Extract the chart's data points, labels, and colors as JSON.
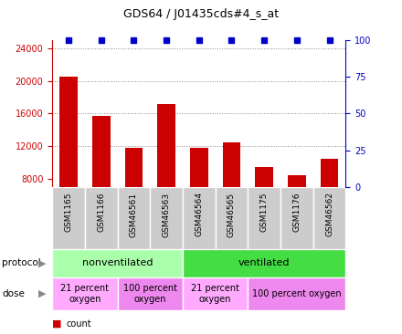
{
  "title": "GDS64 / J01435cds#4_s_at",
  "samples": [
    "GSM1165",
    "GSM1166",
    "GSM46561",
    "GSM46563",
    "GSM46564",
    "GSM46565",
    "GSM1175",
    "GSM1176",
    "GSM46562"
  ],
  "counts": [
    20500,
    15700,
    11800,
    17200,
    11800,
    12500,
    9500,
    8500,
    10500
  ],
  "ylim_left": [
    7000,
    25000
  ],
  "ylim_right": [
    0,
    100
  ],
  "yticks_left": [
    8000,
    12000,
    16000,
    20000,
    24000
  ],
  "yticks_right": [
    0,
    25,
    50,
    75,
    100
  ],
  "bar_color": "#cc0000",
  "dot_color": "#0000cc",
  "grid_dotted_ticks": [
    12000,
    16000,
    20000,
    24000
  ],
  "protocol_groups": [
    {
      "label": "nonventilated",
      "start": 0,
      "end": 4,
      "color": "#aaffaa"
    },
    {
      "label": "ventilated",
      "start": 4,
      "end": 9,
      "color": "#44dd44"
    }
  ],
  "dose_groups": [
    {
      "label": "21 percent\noxygen",
      "start": 0,
      "end": 2,
      "color": "#ffaaff"
    },
    {
      "label": "100 percent\noxygen",
      "start": 2,
      "end": 4,
      "color": "#ee88ee"
    },
    {
      "label": "21 percent\noxygen",
      "start": 4,
      "end": 6,
      "color": "#ffaaff"
    },
    {
      "label": "100 percent oxygen",
      "start": 6,
      "end": 9,
      "color": "#ee88ee"
    }
  ],
  "left_axis_color": "#cc0000",
  "right_axis_color": "#0000cc",
  "sample_bg_color": "#cccccc",
  "sample_border_color": "#ffffff",
  "fig_width": 4.4,
  "fig_height": 3.66,
  "fig_dpi": 100
}
